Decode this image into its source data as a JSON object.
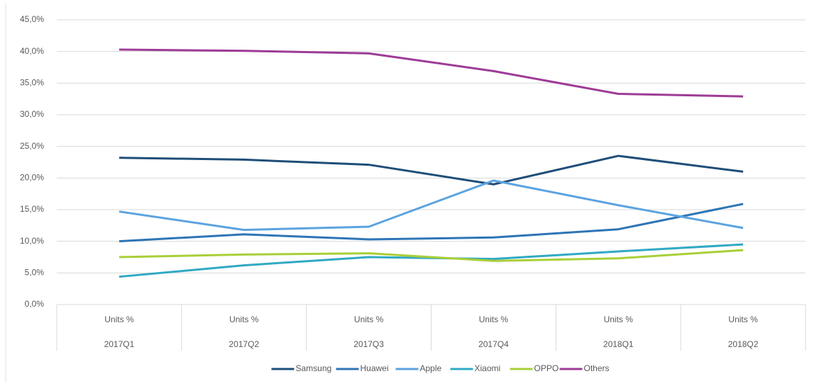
{
  "chart_data": {
    "type": "line",
    "categories": [
      "2017Q1",
      "2017Q2",
      "2017Q3",
      "2017Q4",
      "2018Q1",
      "2018Q2"
    ],
    "category_sublabels": [
      "Units %",
      "Units %",
      "Units %",
      "Units %",
      "Units %",
      "Units %"
    ],
    "series": [
      {
        "name": "Samsung",
        "color": "#1f4e79",
        "values": [
          23.2,
          22.9,
          22.1,
          19.0,
          23.5,
          21.0
        ]
      },
      {
        "name": "Huawei",
        "color": "#2e75b6",
        "values": [
          10.0,
          11.1,
          10.3,
          10.6,
          11.9,
          15.9
        ]
      },
      {
        "name": "Apple",
        "color": "#5ba3e0",
        "values": [
          14.7,
          11.8,
          12.3,
          19.6,
          15.7,
          12.1
        ]
      },
      {
        "name": "Xiaomi",
        "color": "#31a9c4",
        "values": [
          4.4,
          6.2,
          7.5,
          7.2,
          8.4,
          9.5
        ]
      },
      {
        "name": "OPPO",
        "color": "#a9cf38",
        "values": [
          7.5,
          7.9,
          8.1,
          6.9,
          7.3,
          8.6
        ]
      },
      {
        "name": "Others",
        "color": "#9e3b97",
        "values": [
          40.3,
          40.1,
          39.7,
          36.9,
          33.3,
          32.9
        ]
      }
    ],
    "ylim": [
      0,
      45
    ],
    "yticks": [
      {
        "value": 0,
        "label": "0,0%"
      },
      {
        "value": 5,
        "label": "5,0%"
      },
      {
        "value": 10,
        "label": "10,0%"
      },
      {
        "value": 15,
        "label": "15,0%"
      },
      {
        "value": 20,
        "label": "20,0%"
      },
      {
        "value": 25,
        "label": "25,0%"
      },
      {
        "value": 30,
        "label": "30,0%"
      },
      {
        "value": 35,
        "label": "35,0%"
      },
      {
        "value": 40,
        "label": "40,0%"
      },
      {
        "value": 45,
        "label": "45,0%"
      }
    ],
    "grid": true,
    "legend": "bottom"
  }
}
